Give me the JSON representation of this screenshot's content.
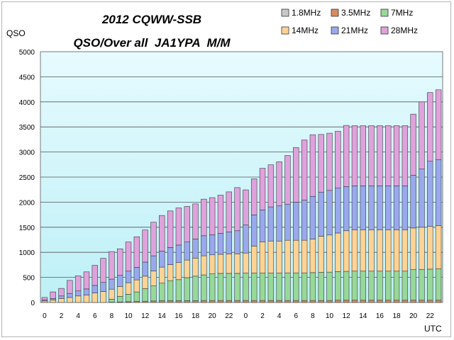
{
  "chart_data": {
    "type": "bar",
    "stacked": true,
    "title": "2012 CQWW-SSB",
    "subtitle": "QSO/Over all  JA1YPA  M/M",
    "ylabel": "QSO",
    "xlabel": "UTC",
    "ylim": [
      0,
      5000
    ],
    "yticks": [
      0,
      500,
      1000,
      1500,
      2000,
      2500,
      3000,
      3500,
      4000,
      4500,
      5000
    ],
    "grid": true,
    "legend_position": "top-right",
    "categories": [
      "0",
      "1",
      "2",
      "3",
      "4",
      "5",
      "6",
      "7",
      "8",
      "9",
      "10",
      "11",
      "12",
      "13",
      "14",
      "15",
      "16",
      "17",
      "18",
      "19",
      "20",
      "21",
      "22",
      "23",
      "0",
      "1",
      "2",
      "3",
      "4",
      "5",
      "6",
      "7",
      "8",
      "9",
      "10",
      "11",
      "12",
      "13",
      "14",
      "15",
      "16",
      "17",
      "18",
      "19",
      "20",
      "21",
      "22",
      "23"
    ],
    "tick_labels": [
      "0",
      "",
      "2",
      "",
      "4",
      "",
      "6",
      "",
      "8",
      "",
      "10",
      "",
      "12",
      "",
      "14",
      "",
      "16",
      "",
      "18",
      "",
      "20",
      "",
      "22",
      "",
      "0",
      "",
      "2",
      "",
      "4",
      "",
      "6",
      "",
      "8",
      "",
      "10",
      "",
      "12",
      "",
      "14",
      "",
      "16",
      "",
      "18",
      "",
      "20",
      "",
      "22",
      ""
    ],
    "series": [
      {
        "name": "1.8MHz",
        "color": "#c8c8c8",
        "values": [
          0,
          0,
          0,
          0,
          0,
          0,
          0,
          0,
          0,
          0,
          0,
          0,
          0,
          0,
          0,
          0,
          0,
          0,
          0,
          0,
          0,
          0,
          0,
          0,
          0,
          0,
          0,
          0,
          0,
          0,
          0,
          0,
          0,
          0,
          0,
          0,
          0,
          0,
          0,
          0,
          0,
          0,
          0,
          0,
          0,
          0,
          0,
          0
        ]
      },
      {
        "name": "3.5MHz",
        "color": "#d98c5f",
        "values": [
          0,
          0,
          0,
          0,
          0,
          0,
          0,
          0,
          5,
          10,
          15,
          20,
          25,
          30,
          35,
          35,
          35,
          35,
          35,
          40,
          40,
          40,
          40,
          40,
          40,
          40,
          40,
          40,
          40,
          40,
          40,
          40,
          40,
          40,
          40,
          45,
          45,
          45,
          45,
          45,
          45,
          45,
          45,
          45,
          45,
          45,
          45,
          45
        ]
      },
      {
        "name": "7MHz",
        "color": "#98d898",
        "values": [
          0,
          0,
          0,
          0,
          0,
          0,
          0,
          0,
          60,
          110,
          150,
          190,
          250,
          300,
          350,
          400,
          420,
          460,
          490,
          510,
          530,
          540,
          540,
          540,
          545,
          545,
          545,
          545,
          545,
          550,
          550,
          550,
          555,
          560,
          565,
          570,
          575,
          580,
          580,
          580,
          580,
          580,
          580,
          580,
          610,
          615,
          620,
          625
        ]
      },
      {
        "name": "14MHz",
        "color": "#ffd394",
        "values": [
          30,
          50,
          80,
          100,
          130,
          150,
          190,
          220,
          200,
          200,
          230,
          240,
          250,
          300,
          320,
          320,
          340,
          350,
          360,
          380,
          380,
          380,
          385,
          390,
          400,
          540,
          620,
          640,
          640,
          650,
          650,
          650,
          670,
          720,
          740,
          770,
          810,
          820,
          820,
          820,
          820,
          820,
          820,
          820,
          830,
          840,
          850,
          860
        ]
      },
      {
        "name": "21MHz",
        "color": "#9aa8ee",
        "values": [
          20,
          30,
          50,
          80,
          100,
          120,
          150,
          180,
          200,
          220,
          230,
          250,
          280,
          300,
          320,
          340,
          350,
          360,
          380,
          400,
          400,
          420,
          440,
          460,
          560,
          620,
          640,
          680,
          700,
          720,
          760,
          800,
          850,
          880,
          890,
          900,
          880,
          880,
          880,
          880,
          880,
          880,
          880,
          880,
          1050,
          1160,
          1300,
          1320
        ]
      },
      {
        "name": "28MHz",
        "color": "#dfa2dc",
        "values": [
          50,
          130,
          150,
          260,
          300,
          340,
          400,
          480,
          550,
          530,
          580,
          610,
          640,
          670,
          710,
          730,
          740,
          710,
          700,
          730,
          740,
          760,
          800,
          860,
          700,
          720,
          830,
          840,
          880,
          970,
          1090,
          1200,
          1230,
          1150,
          1140,
          1130,
          1220,
          1200,
          1200,
          1200,
          1200,
          1200,
          1200,
          1200,
          1220,
          1340,
          1370,
          1390
        ]
      }
    ]
  }
}
